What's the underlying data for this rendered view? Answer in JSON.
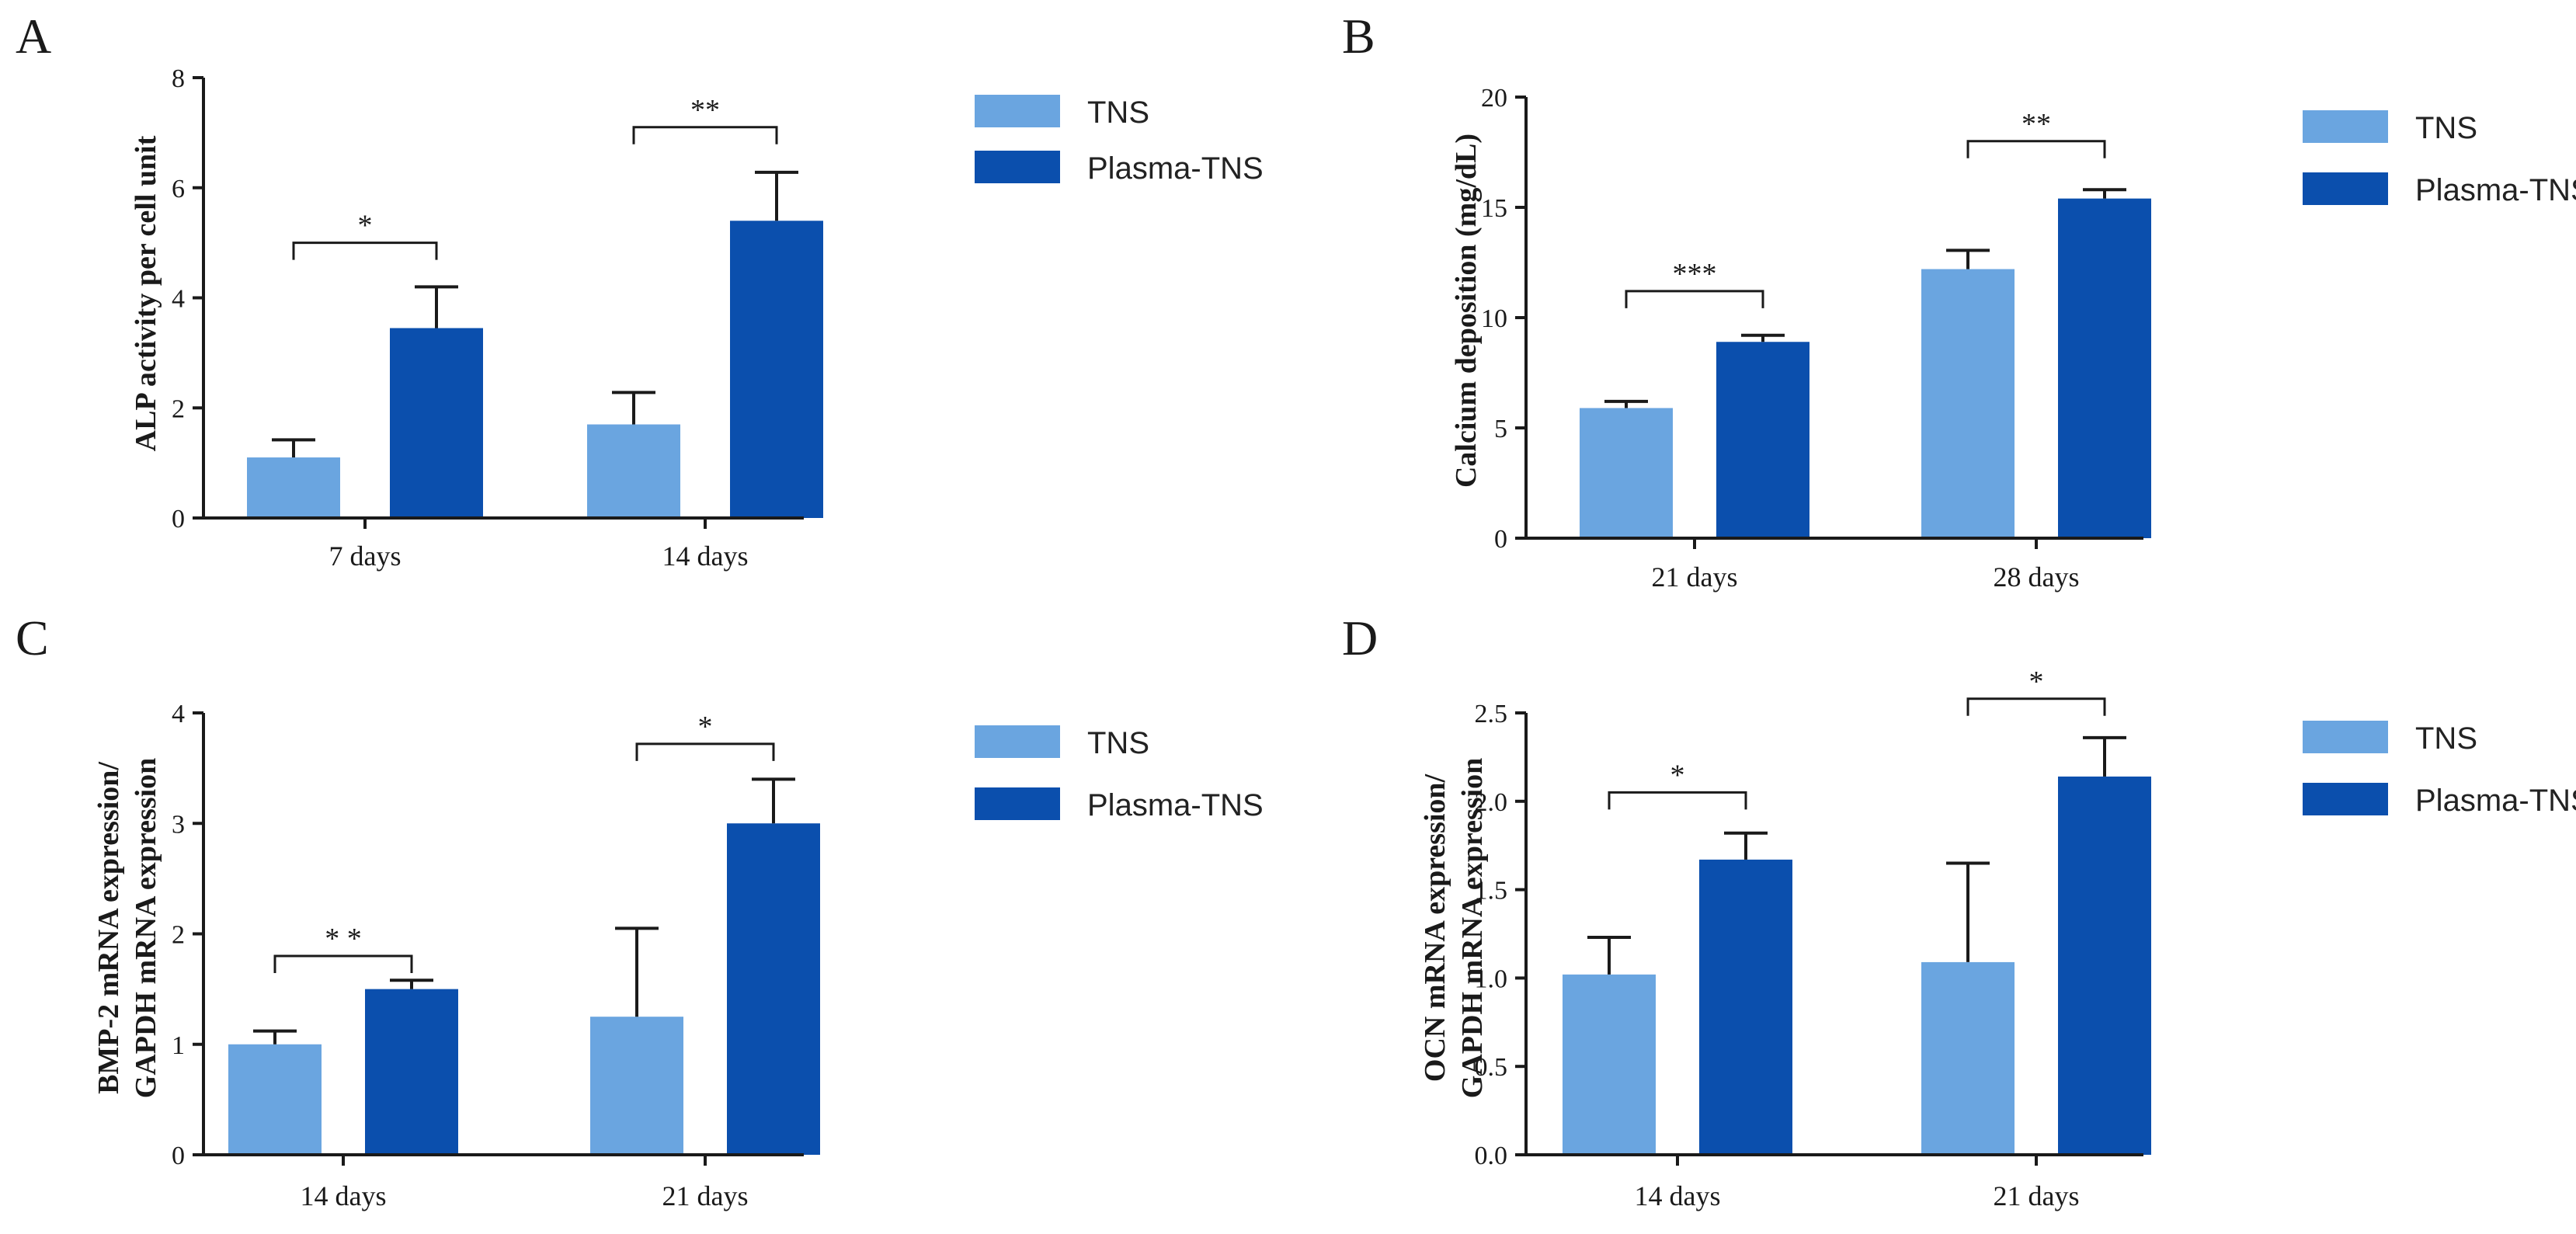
{
  "colors": {
    "tns": "#6aa5e0",
    "plasma": "#0b4fad",
    "axis": "#1a1a1a"
  },
  "chart_data": [
    {
      "panel": "A",
      "type": "bar",
      "ylabel": "ALP activity per cell unit",
      "ylim": [
        0,
        8
      ],
      "yticks": [
        "0",
        "2",
        "4",
        "6",
        "8"
      ],
      "categories": [
        "7 days",
        "14 days"
      ],
      "series": [
        {
          "name": "TNS",
          "values": [
            1.1,
            1.7
          ],
          "errors": [
            0.32,
            0.58
          ]
        },
        {
          "name": "Plasma-TNS",
          "values": [
            3.45,
            5.4
          ],
          "errors": [
            0.75,
            0.88
          ]
        }
      ],
      "significance": [
        "*",
        "**"
      ],
      "sig_heights": [
        5.0,
        7.1
      ],
      "legend": [
        "TNS",
        "Plasma-TNS"
      ]
    },
    {
      "panel": "B",
      "type": "bar",
      "ylabel": "Calcium deposition (mg/dL)",
      "ylim": [
        0,
        20
      ],
      "yticks": [
        "0",
        "5",
        "10",
        "15",
        "20"
      ],
      "categories": [
        "21 days",
        "28 days"
      ],
      "series": [
        {
          "name": "TNS",
          "values": [
            5.9,
            12.2
          ],
          "errors": [
            0.3,
            0.85
          ]
        },
        {
          "name": "Plasma-TNS",
          "values": [
            8.9,
            15.4
          ],
          "errors": [
            0.3,
            0.4
          ]
        }
      ],
      "significance": [
        "***",
        "**"
      ],
      "sig_heights": [
        11.2,
        18.0
      ],
      "legend": [
        "TNS",
        "Plasma-TNS"
      ]
    },
    {
      "panel": "C",
      "type": "bar",
      "ylabel_lines": [
        "BMP-2 mRNA expression/",
        "GAPDH mRNA expression"
      ],
      "ylim": [
        0,
        4
      ],
      "yticks": [
        "0",
        "1",
        "2",
        "3",
        "4"
      ],
      "categories": [
        "14 days",
        "21 days"
      ],
      "series": [
        {
          "name": "TNS",
          "values": [
            1.0,
            1.25
          ],
          "errors": [
            0.12,
            0.8
          ]
        },
        {
          "name": "Plasma-TNS",
          "values": [
            1.5,
            3.0
          ],
          "errors": [
            0.08,
            0.4
          ]
        }
      ],
      "significance": [
        "* *",
        "*"
      ],
      "sig_heights": [
        1.8,
        3.72
      ],
      "legend": [
        "TNS",
        "Plasma-TNS"
      ]
    },
    {
      "panel": "D",
      "type": "bar",
      "ylabel_lines": [
        "OCN mRNA expression/",
        "GAPDH mRNA expression"
      ],
      "ylim": [
        0,
        2.5
      ],
      "yticks": [
        "0.0",
        "0.5",
        "1.0",
        "1.5",
        "2.0",
        "2.5"
      ],
      "categories": [
        "14 days",
        "21 days"
      ],
      "series": [
        {
          "name": "TNS",
          "values": [
            1.02,
            1.09
          ],
          "errors": [
            0.21,
            0.56
          ]
        },
        {
          "name": "Plasma-TNS",
          "values": [
            1.67,
            2.14
          ],
          "errors": [
            0.15,
            0.22
          ]
        }
      ],
      "significance": [
        "*",
        "*"
      ],
      "sig_heights": [
        2.05,
        2.58
      ],
      "legend": [
        "TNS",
        "Plasma-TNS"
      ]
    }
  ]
}
